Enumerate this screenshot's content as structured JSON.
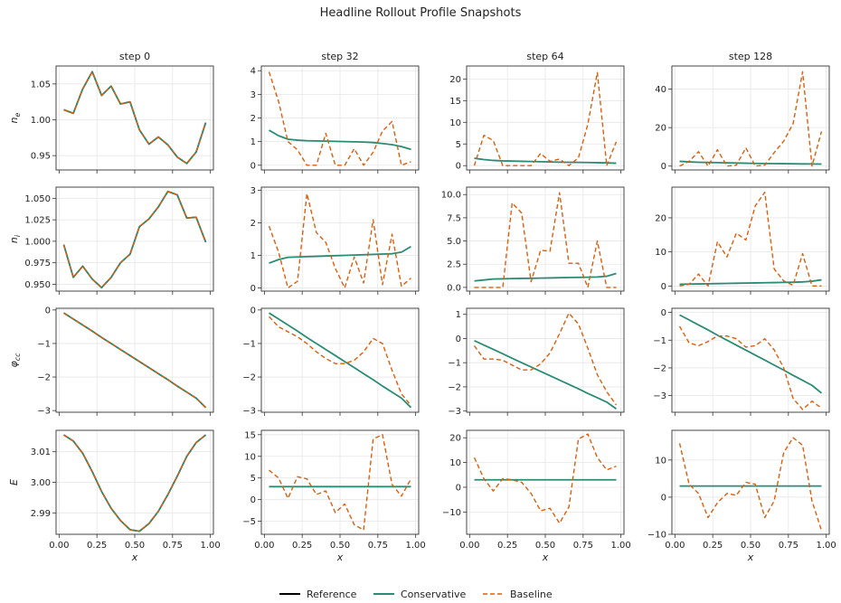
{
  "figure_title": "Headline Rollout Profile Snapshots",
  "legend": [
    {
      "label": "Reference",
      "color": "#000000",
      "dash": "solid"
    },
    {
      "label": "Conservative",
      "color": "#2a8c74",
      "dash": "solid"
    },
    {
      "label": "Baseline",
      "color": "#d95f0e",
      "dash": "dashed"
    }
  ],
  "colors": {
    "reference": "#000000",
    "conservative": "#2a8c74",
    "baseline": "#d95f0e",
    "grid": "#e6e6e6",
    "axis": "#333333"
  },
  "chart_data": {
    "type": "line",
    "title": "Headline Rollout Profile Snapshots",
    "xlabel": "x",
    "columns": [
      "step 0",
      "step 32",
      "step 64",
      "step 128"
    ],
    "row_labels": [
      "n_e",
      "n_i",
      "φ_cc",
      "E"
    ],
    "x": [
      0.031,
      0.094,
      0.156,
      0.219,
      0.281,
      0.344,
      0.406,
      0.469,
      0.531,
      0.594,
      0.656,
      0.719,
      0.781,
      0.844,
      0.906,
      0.969
    ],
    "xlim": [
      -0.02,
      1.02
    ],
    "xticks": [
      "0.00",
      "0.25",
      "0.50",
      "0.75",
      "1.00"
    ],
    "grid": true,
    "legend_position": "bottom-center",
    "panels": [
      [
        {
          "ylim": [
            0.93,
            1.075
          ],
          "yticks": [
            "0.95",
            "1.00",
            "1.05"
          ],
          "reference": [
            1.014,
            1.009,
            1.043,
            1.067,
            1.034,
            1.047,
            1.022,
            1.025,
            0.986,
            0.966,
            0.976,
            0.965,
            0.948,
            0.939,
            0.955,
            0.996
          ],
          "conservative": [
            1.014,
            1.009,
            1.043,
            1.067,
            1.034,
            1.047,
            1.022,
            1.025,
            0.986,
            0.966,
            0.976,
            0.965,
            0.948,
            0.939,
            0.955,
            0.996
          ],
          "baseline": [
            1.014,
            1.009,
            1.043,
            1.067,
            1.034,
            1.047,
            1.022,
            1.025,
            0.986,
            0.966,
            0.976,
            0.965,
            0.948,
            0.939,
            0.955,
            0.996
          ]
        },
        {
          "ylim": [
            -0.2,
            4.2
          ],
          "yticks": [
            "0",
            "1",
            "2",
            "3",
            "4"
          ],
          "conservative": [
            1.48,
            1.25,
            1.1,
            1.06,
            1.04,
            1.03,
            1.02,
            1.01,
            1.0,
            0.99,
            0.98,
            0.96,
            0.92,
            0.87,
            0.79,
            0.67
          ],
          "baseline": [
            3.95,
            2.7,
            1.0,
            0.65,
            0.0,
            0.0,
            1.35,
            0.0,
            0.0,
            0.7,
            0.0,
            0.55,
            1.45,
            1.85,
            0.0,
            0.15
          ]
        },
        {
          "ylim": [
            -1,
            23
          ],
          "yticks": [
            "0",
            "5",
            "10",
            "15",
            "20"
          ],
          "conservative": [
            1.7,
            1.4,
            1.2,
            1.1,
            1.05,
            1.0,
            0.95,
            0.9,
            0.85,
            0.8,
            0.78,
            0.75,
            0.72,
            0.68,
            0.63,
            0.55
          ],
          "baseline": [
            0.0,
            7.0,
            5.8,
            0.0,
            0.0,
            0.0,
            0.0,
            2.8,
            1.0,
            1.5,
            0.0,
            1.8,
            9.5,
            21.5,
            0.0,
            5.5
          ]
        },
        {
          "ylim": [
            -2,
            52
          ],
          "yticks": [
            "0",
            "20",
            "40"
          ],
          "conservative": [
            2.5,
            2.2,
            2.0,
            1.9,
            1.8,
            1.7,
            1.6,
            1.5,
            1.4,
            1.35,
            1.3,
            1.25,
            1.2,
            1.15,
            1.1,
            1.05
          ],
          "baseline": [
            0.0,
            2.5,
            7.5,
            0.0,
            8.5,
            0.0,
            0.5,
            9.5,
            0.0,
            0.5,
            7.0,
            13.0,
            22.0,
            49.0,
            0.0,
            18.0
          ]
        }
      ],
      [
        {
          "ylim": [
            0.942,
            1.063
          ],
          "yticks": [
            "0.950",
            "0.975",
            "1.000",
            "1.025",
            "1.050"
          ],
          "reference": [
            0.996,
            0.958,
            0.971,
            0.956,
            0.946,
            0.958,
            0.975,
            0.985,
            1.017,
            1.026,
            1.04,
            1.058,
            1.054,
            1.027,
            1.028,
            0.999
          ],
          "conservative": [
            0.996,
            0.958,
            0.971,
            0.956,
            0.946,
            0.958,
            0.975,
            0.985,
            1.017,
            1.026,
            1.04,
            1.058,
            1.054,
            1.027,
            1.028,
            0.999
          ],
          "baseline": [
            0.996,
            0.958,
            0.971,
            0.956,
            0.946,
            0.958,
            0.975,
            0.985,
            1.017,
            1.026,
            1.04,
            1.058,
            1.054,
            1.027,
            1.028,
            0.999
          ]
        },
        {
          "ylim": [
            -0.1,
            3.1
          ],
          "yticks": [
            "0",
            "1",
            "2",
            "3"
          ],
          "conservative": [
            0.76,
            0.87,
            0.94,
            0.95,
            0.96,
            0.97,
            0.98,
            0.99,
            1.0,
            1.01,
            1.02,
            1.03,
            1.04,
            1.05,
            1.1,
            1.27
          ],
          "baseline": [
            1.9,
            1.1,
            0.0,
            0.2,
            2.9,
            1.7,
            1.4,
            0.6,
            0.0,
            0.95,
            0.15,
            2.1,
            0.1,
            1.65,
            0.05,
            0.3
          ]
        },
        {
          "ylim": [
            -0.4,
            10.8
          ],
          "yticks": [
            "0.0",
            "2.5",
            "5.0",
            "7.5",
            "10.0"
          ],
          "conservative": [
            0.7,
            0.8,
            0.9,
            0.92,
            0.95,
            0.97,
            0.98,
            1.0,
            1.02,
            1.04,
            1.06,
            1.08,
            1.1,
            1.12,
            1.2,
            1.5
          ],
          "baseline": [
            0.0,
            0.0,
            0.0,
            0.0,
            9.1,
            8.0,
            0.6,
            4.0,
            3.9,
            10.2,
            2.6,
            2.6,
            0.0,
            5.0,
            0.0,
            0.0
          ]
        },
        {
          "ylim": [
            -1.5,
            29
          ],
          "yticks": [
            "0",
            "10",
            "20"
          ],
          "conservative": [
            0.5,
            0.55,
            0.6,
            0.65,
            0.7,
            0.75,
            0.8,
            0.85,
            0.9,
            0.95,
            1.0,
            1.05,
            1.1,
            1.2,
            1.4,
            1.8
          ],
          "baseline": [
            0.0,
            0.5,
            3.5,
            0.0,
            13.0,
            8.5,
            15.5,
            13.5,
            23.5,
            27.5,
            5.0,
            1.5,
            0.2,
            9.5,
            0.0,
            0.0
          ]
        }
      ],
      [
        {
          "ylim": [
            -3.05,
            0.05
          ],
          "yticks": [
            "0",
            "-1",
            "-2",
            "-3"
          ],
          "reference": [
            -0.09,
            -0.27,
            -0.45,
            -0.63,
            -0.82,
            -1.0,
            -1.18,
            -1.36,
            -1.54,
            -1.72,
            -1.9,
            -2.08,
            -2.27,
            -2.45,
            -2.63,
            -2.91
          ],
          "conservative": [
            -0.09,
            -0.27,
            -0.45,
            -0.63,
            -0.82,
            -1.0,
            -1.18,
            -1.36,
            -1.54,
            -1.72,
            -1.9,
            -2.08,
            -2.27,
            -2.45,
            -2.63,
            -2.91
          ],
          "baseline": [
            -0.09,
            -0.27,
            -0.45,
            -0.63,
            -0.82,
            -1.0,
            -1.18,
            -1.36,
            -1.54,
            -1.72,
            -1.9,
            -2.08,
            -2.27,
            -2.45,
            -2.63,
            -2.91
          ]
        },
        {
          "ylim": [
            -3.05,
            0.05
          ],
          "yticks": [
            "0",
            "-1",
            "-2",
            "-3"
          ],
          "conservative": [
            -0.09,
            -0.27,
            -0.45,
            -0.63,
            -0.82,
            -1.0,
            -1.18,
            -1.36,
            -1.54,
            -1.72,
            -1.9,
            -2.08,
            -2.27,
            -2.45,
            -2.63,
            -2.91
          ],
          "baseline": [
            -0.2,
            -0.5,
            -0.65,
            -0.8,
            -1.0,
            -1.25,
            -1.45,
            -1.6,
            -1.6,
            -1.5,
            -1.25,
            -0.85,
            -1.0,
            -1.8,
            -2.5,
            -2.85
          ]
        },
        {
          "ylim": [
            -3.05,
            1.25
          ],
          "yticks": [
            "1",
            "0",
            "-1",
            "-2",
            "-3"
          ],
          "conservative": [
            -0.09,
            -0.27,
            -0.45,
            -0.63,
            -0.82,
            -1.0,
            -1.18,
            -1.36,
            -1.54,
            -1.72,
            -1.9,
            -2.08,
            -2.27,
            -2.45,
            -2.63,
            -2.91
          ],
          "baseline": [
            -0.3,
            -0.85,
            -0.85,
            -0.9,
            -1.1,
            -1.3,
            -1.3,
            -1.05,
            -0.6,
            0.2,
            1.05,
            0.6,
            -0.4,
            -1.5,
            -2.2,
            -2.75
          ]
        },
        {
          "ylim": [
            -3.6,
            0.15
          ],
          "yticks": [
            "0",
            "-1",
            "-2",
            "-3"
          ],
          "conservative": [
            -0.09,
            -0.27,
            -0.45,
            -0.63,
            -0.82,
            -1.0,
            -1.18,
            -1.36,
            -1.54,
            -1.72,
            -1.9,
            -2.08,
            -2.27,
            -2.45,
            -2.63,
            -2.91
          ],
          "baseline": [
            -0.5,
            -1.1,
            -1.2,
            -1.05,
            -0.85,
            -0.85,
            -0.95,
            -1.25,
            -1.2,
            -0.95,
            -1.35,
            -2.0,
            -3.1,
            -3.5,
            -3.2,
            -3.45
          ]
        }
      ],
      [
        {
          "ylim": [
            2.983,
            3.017
          ],
          "yticks": [
            "2.99",
            "3.00",
            "3.01"
          ],
          "reference": [
            3.0155,
            3.0135,
            3.0095,
            3.0035,
            2.997,
            2.9915,
            2.9875,
            2.9845,
            2.984,
            2.9865,
            2.9905,
            2.996,
            3.002,
            3.0085,
            3.013,
            3.0155
          ],
          "conservative": [
            3.0155,
            3.0135,
            3.0095,
            3.0035,
            2.997,
            2.9915,
            2.9875,
            2.9845,
            2.984,
            2.9865,
            2.9905,
            2.996,
            3.002,
            3.0085,
            3.013,
            3.0155
          ],
          "baseline": [
            3.0155,
            3.0135,
            3.0095,
            3.0035,
            2.997,
            2.9915,
            2.9875,
            2.9845,
            2.984,
            2.9865,
            2.9905,
            2.996,
            3.002,
            3.0085,
            3.013,
            3.0155
          ]
        },
        {
          "ylim": [
            -8,
            16
          ],
          "yticks": [
            "-5",
            "0",
            "5",
            "10",
            "15"
          ],
          "conservative": [
            3.0,
            3.0,
            3.0,
            3.0,
            3.0,
            3.0,
            3.0,
            3.0,
            3.0,
            3.0,
            3.0,
            3.0,
            3.0,
            3.0,
            3.0,
            3.0
          ],
          "baseline": [
            6.8,
            5.0,
            0.3,
            5.3,
            4.8,
            1.2,
            2.0,
            -3.0,
            -1.0,
            -5.8,
            -7.0,
            14.0,
            15.0,
            3.5,
            0.8,
            4.8
          ]
        },
        {
          "ylim": [
            -19,
            23
          ],
          "yticks": [
            "-10",
            "0",
            "10",
            "20"
          ],
          "conservative": [
            3.0,
            3.0,
            3.0,
            3.0,
            3.0,
            3.0,
            3.0,
            3.0,
            3.0,
            3.0,
            3.0,
            3.0,
            3.0,
            3.0,
            3.0,
            3.0
          ],
          "baseline": [
            12.0,
            3.5,
            -1.5,
            3.5,
            3.0,
            2.0,
            -2.5,
            -9.5,
            -8.5,
            -14.5,
            -8.0,
            19.5,
            21.5,
            12.0,
            7.0,
            8.5
          ]
        },
        {
          "ylim": [
            -10,
            18
          ],
          "yticks": [
            "-10",
            "0",
            "10"
          ],
          "conservative": [
            3.0,
            3.0,
            3.0,
            3.0,
            3.0,
            3.0,
            3.0,
            3.0,
            3.0,
            3.0,
            3.0,
            3.0,
            3.0,
            3.0,
            3.0,
            3.0
          ],
          "baseline": [
            14.5,
            3.5,
            1.0,
            -5.5,
            -1.5,
            1.0,
            0.5,
            4.0,
            3.5,
            -5.5,
            -1.0,
            12.0,
            16.0,
            14.0,
            -1.0,
            -9.0
          ]
        }
      ]
    ]
  }
}
